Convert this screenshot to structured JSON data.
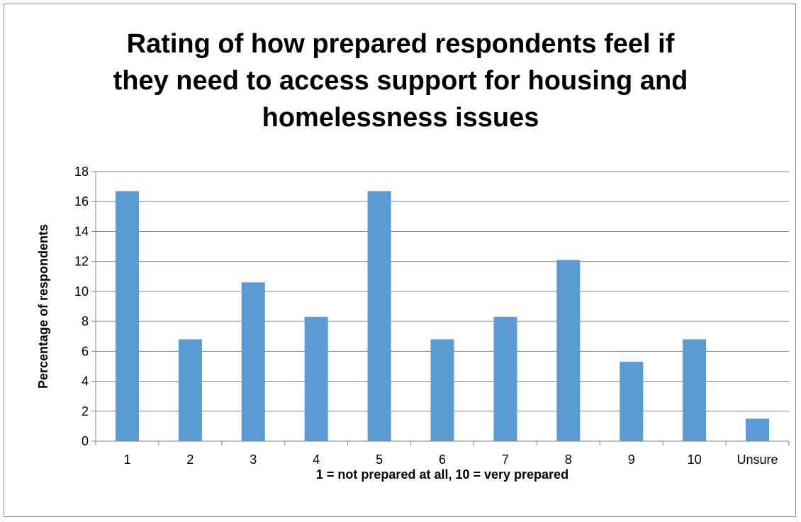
{
  "chart_data": {
    "type": "bar",
    "title": "Rating of how prepared respondents feel if\nthey need to access  support for housing and\nhomelessness issues",
    "xlabel": "1 = not prepared at all, 10 =  very prepared",
    "ylabel": "Percentage of respondents",
    "categories": [
      "1",
      "2",
      "3",
      "4",
      "5",
      "6",
      "7",
      "8",
      "9",
      "10",
      "Unsure"
    ],
    "values": [
      16.7,
      6.8,
      10.6,
      8.3,
      16.7,
      6.8,
      8.3,
      12.1,
      5.3,
      6.8,
      1.5
    ],
    "ylim": [
      0,
      18
    ],
    "yticks": [
      "0",
      "2",
      "4",
      "6",
      "8",
      "10",
      "12",
      "14",
      "16",
      "18"
    ],
    "grid": true,
    "legend": "none",
    "bar_color": "#5B9BD5",
    "grid_color": "#868686"
  }
}
